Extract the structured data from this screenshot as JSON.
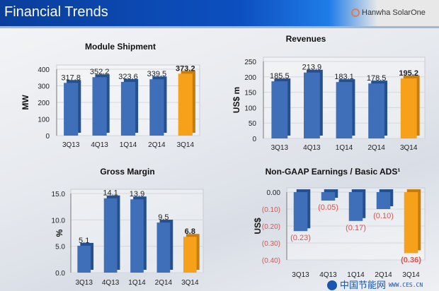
{
  "header": {
    "title": "Financial Trends",
    "logo_text": "Hanwha SolarOne"
  },
  "watermark": {
    "text": "中国节能网",
    "url": "WWW.CES.CN"
  },
  "colors": {
    "bar": "#3f6fb8",
    "highlight": "#f7a11a",
    "negative_label": "#d9534f"
  },
  "chart_data": [
    {
      "type": "bar",
      "title": "Module Shipment",
      "ylabel": "MW",
      "categories": [
        "3Q13",
        "4Q13",
        "1Q14",
        "2Q14",
        "3Q14"
      ],
      "values": [
        317.8,
        352.2,
        323.6,
        339.5,
        373.2
      ],
      "labels": [
        "317.8",
        "352.2",
        "323.6",
        "339.5",
        "373.2"
      ],
      "ylim": [
        0,
        400
      ],
      "yticks": [
        "0",
        "100",
        "200",
        "300",
        "400"
      ],
      "highlight_last": true
    },
    {
      "type": "bar",
      "title": "Revenues",
      "ylabel": "US$ m",
      "categories": [
        "3Q13",
        "4Q13",
        "1Q14",
        "2Q14",
        "3Q14"
      ],
      "values": [
        185.5,
        213.9,
        183.1,
        178.5,
        195.2
      ],
      "labels": [
        "185.5",
        "213.9",
        "183.1",
        "178.5",
        "195.2"
      ],
      "ylim": [
        0,
        250
      ],
      "yticks": [
        "0",
        "50",
        "100",
        "150",
        "200",
        "250"
      ],
      "highlight_last": true
    },
    {
      "type": "bar",
      "title": "Gross Margin",
      "ylabel": "%",
      "categories": [
        "3Q13",
        "4Q13",
        "1Q14",
        "2Q14",
        "3Q14"
      ],
      "values": [
        5.1,
        14.1,
        13.9,
        9.5,
        6.8
      ],
      "labels": [
        "5.1",
        "14.1",
        "13.9",
        "9.5",
        "6.8"
      ],
      "ylim": [
        0,
        15
      ],
      "yticks": [
        "0.0",
        "5.0",
        "10.0",
        "15.0"
      ],
      "highlight_last": true
    },
    {
      "type": "bar",
      "title": "Non-GAAP Earnings / Basic ADS¹",
      "ylabel": "US$",
      "categories": [
        "3Q13",
        "4Q13",
        "1Q14",
        "2Q14",
        "3Q14"
      ],
      "values": [
        -0.23,
        -0.05,
        -0.17,
        -0.1,
        -0.36
      ],
      "labels": [
        "(0.23)",
        "(0.05)",
        "(0.17)",
        "(0.10)",
        "(0.36)"
      ],
      "ylim": [
        -0.4,
        0
      ],
      "yticks": [
        "(0.40)",
        "(0.30)",
        "(0.20)",
        "(0.10)",
        "0.00"
      ],
      "highlight_last": true
    }
  ]
}
